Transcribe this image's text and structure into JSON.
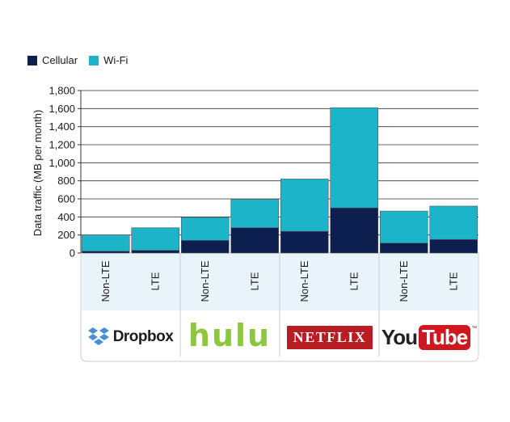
{
  "chart_data": {
    "type": "bar",
    "stacked": true,
    "categories": [
      "Non-LTE",
      "LTE",
      "Non-LTE",
      "LTE",
      "Non-LTE",
      "LTE",
      "Non-LTE",
      "LTE"
    ],
    "groups": [
      {
        "name": "Dropbox",
        "categories": [
          "Non-LTE",
          "LTE"
        ]
      },
      {
        "name": "hulu",
        "categories": [
          "Non-LTE",
          "LTE"
        ]
      },
      {
        "name": "NETFLIX",
        "categories": [
          "Non-LTE",
          "LTE"
        ]
      },
      {
        "name": "YouTube",
        "categories": [
          "Non-LTE",
          "LTE"
        ]
      }
    ],
    "series": [
      {
        "name": "Cellular",
        "color": "#0d1f4f",
        "values": [
          20,
          30,
          140,
          280,
          240,
          500,
          110,
          150
        ]
      },
      {
        "name": "Wi-Fi",
        "color": "#1bb4c8",
        "values": [
          180,
          250,
          255,
          315,
          580,
          1110,
          355,
          370
        ]
      }
    ],
    "title": "",
    "xlabel": "",
    "ylabel": "Data traffic (MB per month)",
    "ylim": [
      0,
      1800
    ],
    "yticks": [
      0,
      200,
      400,
      600,
      800,
      1000,
      1200,
      1400,
      1600,
      1800
    ],
    "ytick_labels": [
      "0",
      "200",
      "400",
      "600",
      "800",
      "1,000",
      "1,200",
      "1,400",
      "1,600",
      "1,800"
    ],
    "grid": true,
    "legend_position": "top-left"
  },
  "logos": {
    "dropbox": "Dropbox",
    "hulu": "hulu",
    "netflix": "NETFLIX",
    "youtube_you": "You",
    "youtube_tube": "Tube",
    "youtube_tm": "™"
  },
  "icons": {
    "dropbox": "dropbox-box-icon"
  }
}
